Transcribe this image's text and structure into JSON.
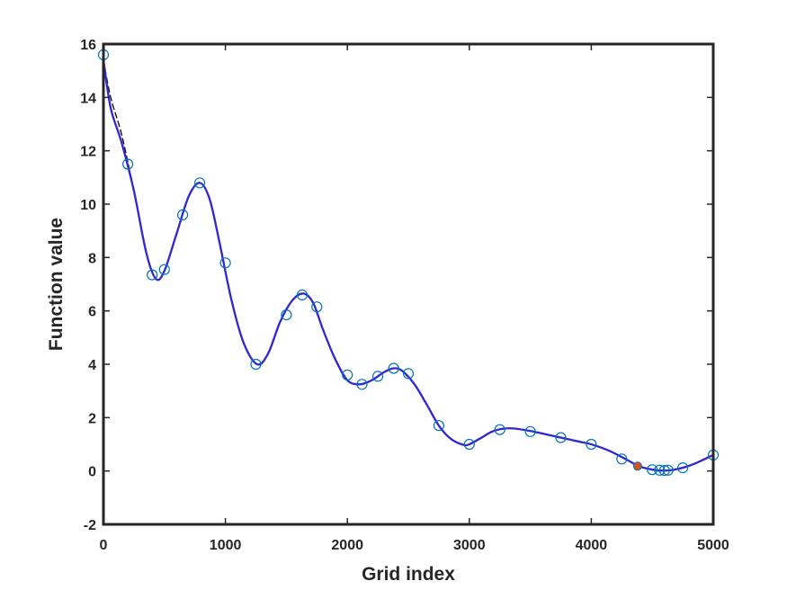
{
  "chart_data": {
    "type": "line",
    "title": "",
    "xlabel": "Grid index",
    "ylabel": "Function value",
    "xlim": [
      0,
      5000
    ],
    "ylim": [
      -2,
      16
    ],
    "xticks": [
      0,
      1000,
      2000,
      3000,
      4000,
      5000
    ],
    "yticks": [
      -2,
      0,
      2,
      4,
      6,
      8,
      10,
      12,
      14,
      16
    ],
    "grid": false,
    "legend": "none",
    "series": [
      {
        "style": "dashed-line",
        "color": "#000000",
        "x": [
          0,
          60,
          150,
          250,
          350,
          430,
          500,
          600,
          700,
          790,
          870,
          950,
          1050,
          1150,
          1260,
          1350,
          1450,
          1550,
          1640,
          1720,
          1800,
          1900,
          2000,
          2100,
          2200,
          2300,
          2380,
          2450,
          2550,
          2650,
          2750,
          2850,
          2950,
          3000,
          3100,
          3200,
          3330,
          3500,
          3700,
          3900,
          4000,
          4150,
          4300,
          4380,
          4450,
          4550,
          4650,
          4750,
          4850,
          5000
        ],
        "y": [
          15.4,
          14.0,
          12.6,
          10.5,
          8.2,
          7.2,
          7.5,
          8.9,
          10.3,
          10.8,
          10.2,
          8.6,
          6.4,
          4.8,
          4.0,
          4.4,
          5.6,
          6.4,
          6.65,
          6.3,
          5.3,
          4.2,
          3.4,
          3.25,
          3.4,
          3.7,
          3.85,
          3.75,
          3.25,
          2.5,
          1.7,
          1.2,
          0.98,
          1.0,
          1.25,
          1.5,
          1.6,
          1.5,
          1.3,
          1.1,
          1.0,
          0.75,
          0.4,
          0.2,
          0.1,
          0.02,
          0.03,
          0.12,
          0.28,
          0.6
        ]
      },
      {
        "style": "solid-line",
        "color": "#cc2b8f",
        "x": [
          0,
          60,
          150,
          250,
          350,
          430,
          500,
          600,
          700,
          790,
          870,
          950,
          1050,
          1150,
          1260,
          1350,
          1450,
          1550,
          1640,
          1720,
          1800,
          1900,
          2000,
          2100,
          2200,
          2300,
          2380,
          2450,
          2550,
          2650,
          2750,
          2850,
          2950,
          3000,
          3100,
          3200,
          3330,
          3500,
          3700,
          3900,
          4000,
          4150,
          4300,
          4380,
          4450,
          4550,
          4650,
          4750,
          4850,
          5000
        ],
        "y": [
          15.4,
          13.6,
          12.3,
          10.5,
          8.2,
          7.2,
          7.5,
          8.9,
          10.3,
          10.8,
          10.2,
          8.6,
          6.4,
          4.8,
          4.0,
          4.4,
          5.6,
          6.4,
          6.65,
          6.3,
          5.3,
          4.2,
          3.4,
          3.25,
          3.4,
          3.7,
          3.85,
          3.75,
          3.25,
          2.5,
          1.7,
          1.2,
          0.98,
          1.0,
          1.25,
          1.5,
          1.6,
          1.5,
          1.3,
          1.1,
          1.0,
          0.75,
          0.4,
          0.2,
          0.1,
          0.02,
          0.03,
          0.12,
          0.28,
          0.6
        ]
      },
      {
        "style": "solid-line",
        "color": "#2b2bd6",
        "x": [
          0,
          60,
          150,
          250,
          350,
          430,
          500,
          600,
          700,
          790,
          870,
          950,
          1050,
          1150,
          1260,
          1350,
          1450,
          1550,
          1640,
          1720,
          1800,
          1900,
          2000,
          2100,
          2200,
          2300,
          2380,
          2450,
          2550,
          2650,
          2750,
          2850,
          2950,
          3000,
          3100,
          3200,
          3330,
          3500,
          3700,
          3900,
          4000,
          4150,
          4300,
          4380,
          4450,
          4550,
          4650,
          4750,
          4850,
          5000
        ],
        "y": [
          15.4,
          13.6,
          12.3,
          10.5,
          8.2,
          7.2,
          7.5,
          8.9,
          10.3,
          10.8,
          10.2,
          8.6,
          6.4,
          4.8,
          4.0,
          4.4,
          5.6,
          6.4,
          6.65,
          6.3,
          5.3,
          4.2,
          3.4,
          3.25,
          3.4,
          3.7,
          3.85,
          3.75,
          3.25,
          2.5,
          1.7,
          1.2,
          0.98,
          1.0,
          1.25,
          1.5,
          1.6,
          1.5,
          1.3,
          1.1,
          1.0,
          0.75,
          0.4,
          0.2,
          0.1,
          0.02,
          0.03,
          0.12,
          0.28,
          0.6
        ]
      },
      {
        "style": "open-circle-markers",
        "color": "#0072bd",
        "x": [
          0,
          200,
          400,
          500,
          650,
          790,
          1000,
          1250,
          1500,
          1630,
          1750,
          2000,
          2120,
          2250,
          2380,
          2500,
          2750,
          3000,
          3250,
          3500,
          3750,
          4000,
          4250,
          4500,
          4560,
          4600,
          4630,
          4750,
          5000
        ],
        "y": [
          15.6,
          11.5,
          7.35,
          7.55,
          9.6,
          10.8,
          7.8,
          4.0,
          5.85,
          6.6,
          6.15,
          3.6,
          3.25,
          3.55,
          3.85,
          3.65,
          1.7,
          1.0,
          1.55,
          1.48,
          1.25,
          1.0,
          0.45,
          0.05,
          0.03,
          0.02,
          0.03,
          0.12,
          0.6
        ]
      },
      {
        "style": "filled-marker",
        "color": "#d95319",
        "x": [
          4380
        ],
        "y": [
          0.18
        ]
      }
    ]
  }
}
